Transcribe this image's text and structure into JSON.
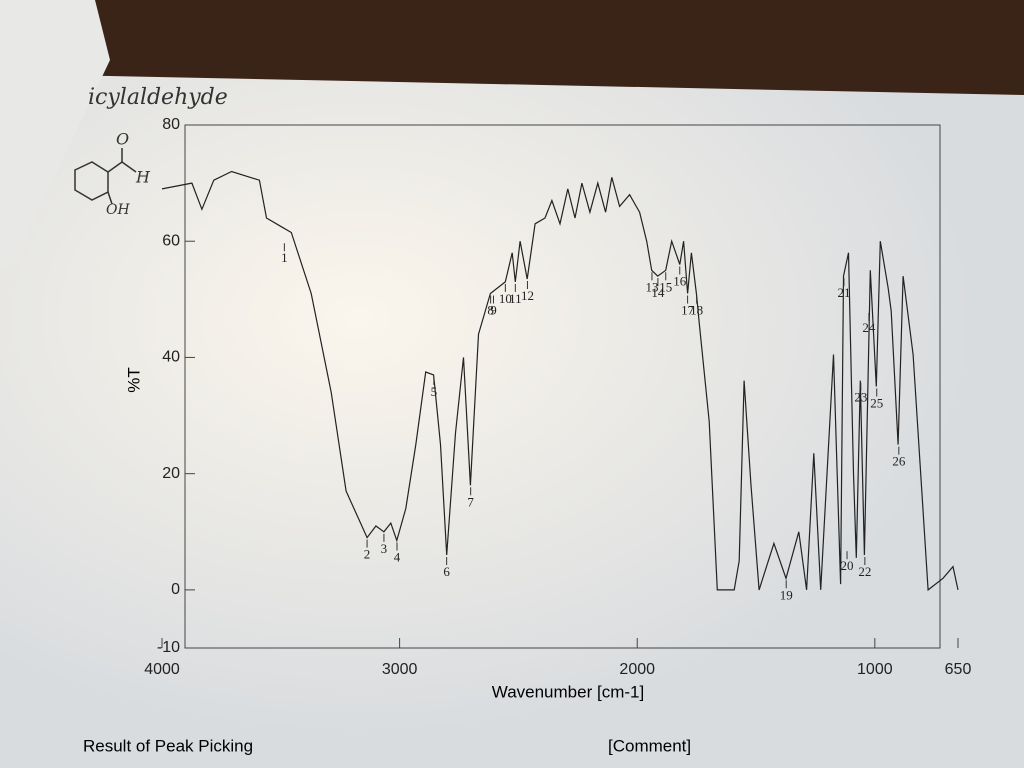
{
  "chart_data": {
    "type": "line",
    "x_label": "Wavenumber [cm-1]",
    "y_label": "%T",
    "xlim": [
      4000,
      650
    ],
    "ylim": [
      -10,
      80
    ],
    "xticks": [
      4000,
      3000,
      2000,
      1000,
      650
    ],
    "yticks": [
      -10,
      0,
      20,
      40,
      60,
      80
    ],
    "x": [
      4000,
      3874,
      3832,
      3782,
      3707,
      3590,
      3560,
      3498,
      3456,
      3372,
      3288,
      3225,
      3137,
      3100,
      3066,
      3037,
      3012,
      2974,
      2932,
      2890,
      2857,
      2828,
      2802,
      2765,
      2731,
      2702,
      2668,
      2618,
      2555,
      2526,
      2513,
      2493,
      2463,
      2430,
      2388,
      2359,
      2325,
      2292,
      2262,
      2233,
      2199,
      2166,
      2133,
      2107,
      2074,
      2032,
      1990,
      1960,
      1939,
      1914,
      1880,
      1855,
      1821,
      1805,
      1788,
      1772,
      1751,
      1739,
      1697,
      1663,
      1592,
      1571,
      1550,
      1521,
      1487,
      1425,
      1374,
      1320,
      1287,
      1257,
      1228,
      1174,
      1144,
      1132,
      1111,
      1090,
      1078,
      1061,
      1044,
      1019,
      994,
      977,
      944,
      931,
      902,
      881,
      839,
      776,
      713,
      671,
      650
    ],
    "series": [
      {
        "color": "#222222",
        "values": [
          69,
          70,
          65.5,
          70.5,
          72,
          70.5,
          64,
          62.5,
          61.5,
          51,
          34,
          17,
          9,
          11,
          10,
          11.5,
          8.5,
          14,
          25,
          37.5,
          37,
          25,
          6,
          27,
          40,
          18,
          44,
          51,
          53,
          58,
          53,
          60,
          53.5,
          63,
          64,
          67,
          63,
          69,
          64,
          70,
          65,
          70,
          65,
          71,
          66,
          68,
          65,
          60,
          55,
          54,
          55,
          60,
          56,
          60,
          51,
          58,
          51,
          46,
          29,
          0,
          0,
          5,
          36,
          18,
          0,
          8,
          2,
          10,
          0,
          23.5,
          0,
          40.5,
          1,
          54,
          58,
          20,
          5.5,
          36,
          6,
          55,
          35,
          60,
          52,
          48,
          25,
          54,
          40.5,
          0,
          2,
          4,
          0
        ]
      }
    ],
    "peaks": {
      "labels": [
        1,
        2,
        3,
        4,
        5,
        6,
        7,
        8,
        9,
        10,
        11,
        12,
        13,
        14,
        15,
        16,
        17,
        18,
        19,
        20,
        21,
        22,
        23,
        24,
        25,
        26
      ],
      "x": [
        3485,
        3137,
        3066,
        3011,
        2856,
        2802,
        2701,
        2617,
        2605,
        2555,
        2513,
        2462,
        1938,
        1913,
        1880,
        1821,
        1788,
        1750,
        1373,
        1117,
        1130,
        1042,
        1059,
        1025,
        992,
        899
      ],
      "y": [
        60,
        9,
        10,
        8.5,
        37,
        6,
        18,
        51,
        51,
        53,
        53,
        53.5,
        55,
        54,
        55,
        56,
        51,
        51,
        2,
        7,
        54,
        6,
        36,
        48,
        35,
        25
      ]
    }
  },
  "handwriting": {
    "name": "icylaldehyde",
    "atoms": [
      "O",
      "H",
      "OH"
    ]
  },
  "footer": [
    "Result of Peak Picking",
    "[Comment]"
  ]
}
